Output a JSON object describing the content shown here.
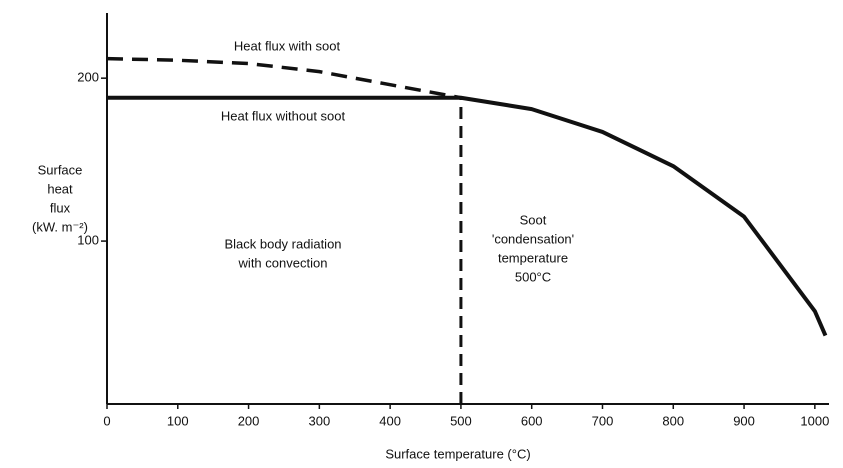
{
  "chart_data": {
    "type": "line",
    "x_label": "Surface temperature (°C)",
    "y_label": [
      "Surface",
      "heat",
      "flux",
      "(kW. m⁻²)"
    ],
    "x": [
      0,
      100,
      200,
      300,
      400,
      500,
      600,
      700,
      800,
      900,
      1000,
      1015
    ],
    "series": [
      {
        "name": "Heat flux with soot",
        "color": "#111111",
        "dashed": true,
        "values": [
          212,
          211,
          209,
          204,
          196,
          188,
          null,
          null,
          null,
          null,
          null,
          null
        ]
      },
      {
        "name": "Heat flux without soot",
        "color": "#111111",
        "dashed": false,
        "values": [
          188,
          188,
          188,
          188,
          188,
          188,
          181,
          167,
          146,
          115,
          57,
          42
        ]
      }
    ],
    "vline": 500,
    "annotations": [
      [
        "Black body radiation",
        "with convection"
      ],
      [
        "Soot",
        "'condensation'",
        "temperature",
        "500°C"
      ]
    ],
    "xlim": [
      0,
      1020
    ],
    "ylim": [
      0,
      240
    ],
    "xticks": [
      0,
      100,
      200,
      300,
      400,
      500,
      600,
      700,
      800,
      900,
      1000
    ],
    "yticks": [
      100,
      200
    ]
  }
}
